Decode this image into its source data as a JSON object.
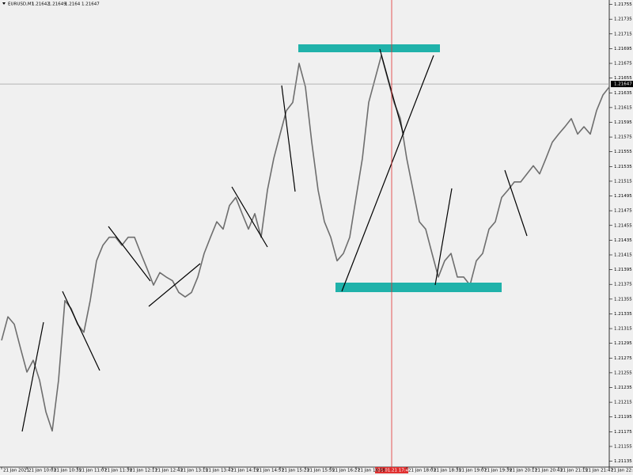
{
  "chart_data": {
    "type": "line",
    "symbol": "EURUSD,M1",
    "ohlc": [
      1.21642,
      1.21649,
      1.2164,
      1.21647
    ],
    "crosshair_time": "2021.01.21 17:44",
    "categories": [
      "21 Jan 2021",
      null,
      null,
      null,
      "21 Jan 10:03",
      null,
      null,
      null,
      "21 Jan 10:35",
      null,
      null,
      null,
      "21 Jan 11:07",
      null,
      null,
      null,
      "21 Jan 11:39",
      null,
      null,
      null,
      "21 Jan 12:11",
      null,
      null,
      null,
      "21 Jan 12:43",
      null,
      null,
      null,
      "21 Jan 13:15",
      null,
      null,
      null,
      "21 Jan 13:47",
      null,
      null,
      null,
      "21 Jan 14:19",
      null,
      null,
      null,
      "21 Jan 14:51",
      null,
      null,
      null,
      "21 Jan 15:23",
      null,
      null,
      null,
      "21 Jan 15:55",
      null,
      null,
      null,
      "21 Jan 16:27",
      null,
      null,
      null,
      "21 Jan 16:59",
      null,
      null,
      null,
      null,
      null,
      null,
      null,
      "21 Jan 18:03",
      null,
      null,
      null,
      "21 Jan 18:35",
      null,
      null,
      null,
      "21 Jan 19:07",
      null,
      null,
      null,
      "21 Jan 19:39",
      null,
      null,
      null,
      "21 Jan 20:11",
      null,
      null,
      null,
      "21 Jan 20:43",
      null,
      null,
      null,
      "21 Jan 21:15",
      null,
      null,
      null,
      "21 Jan 21:47",
      null,
      null,
      null,
      "21 Jan 22:19"
    ],
    "values": [
      1.21299,
      1.21331,
      1.21321,
      1.21288,
      1.21256,
      1.21272,
      1.21245,
      1.21202,
      1.21176,
      1.21245,
      1.21353,
      1.21342,
      1.21321,
      1.2131,
      1.21353,
      1.21407,
      1.21428,
      1.21439,
      1.21439,
      1.21428,
      1.21439,
      1.21439,
      1.21417,
      1.21396,
      1.21374,
      1.21391,
      1.21385,
      1.2138,
      1.21364,
      1.21358,
      1.21364,
      1.21385,
      1.21417,
      1.21439,
      1.2146,
      1.2145,
      1.21482,
      1.21493,
      1.21471,
      1.2145,
      1.21471,
      1.21439,
      1.21503,
      1.21546,
      1.21579,
      1.21611,
      1.21622,
      1.21675,
      1.21643,
      1.21568,
      1.21503,
      1.2146,
      1.21439,
      1.21407,
      1.21417,
      1.21439,
      1.21493,
      1.21546,
      1.21622,
      1.21654,
      1.21686,
      1.21654,
      1.21622,
      1.216,
      1.21546,
      1.21503,
      1.2146,
      1.2145,
      1.21417,
      1.21385,
      1.21407,
      1.21417,
      1.21385,
      1.21385,
      1.21374,
      1.21407,
      1.21417,
      1.2145,
      1.2146,
      1.21493,
      1.21503,
      1.21514,
      1.21514,
      1.21525,
      1.21536,
      1.21525,
      1.21546,
      1.21568,
      1.21579,
      1.21589,
      1.216,
      1.21579,
      1.21589,
      1.21579,
      1.21611,
      1.21632,
      1.21643
    ],
    "color": "#6e6e6e",
    "ylim": [
      1.21127,
      1.21761
    ],
    "yticks": [
      1.21755,
      1.21735,
      1.21715,
      1.21695,
      1.21675,
      1.21655,
      1.21635,
      1.21615,
      1.21595,
      1.21575,
      1.21555,
      1.21535,
      1.21515,
      1.21495,
      1.21475,
      1.21455,
      1.21435,
      1.21415,
      1.21395,
      1.21375,
      1.21355,
      1.21335,
      1.21315,
      1.21295,
      1.21275,
      1.21255,
      1.21235,
      1.21215,
      1.21195,
      1.21175,
      1.21155,
      1.21135
    ],
    "grid": false
  }
}
